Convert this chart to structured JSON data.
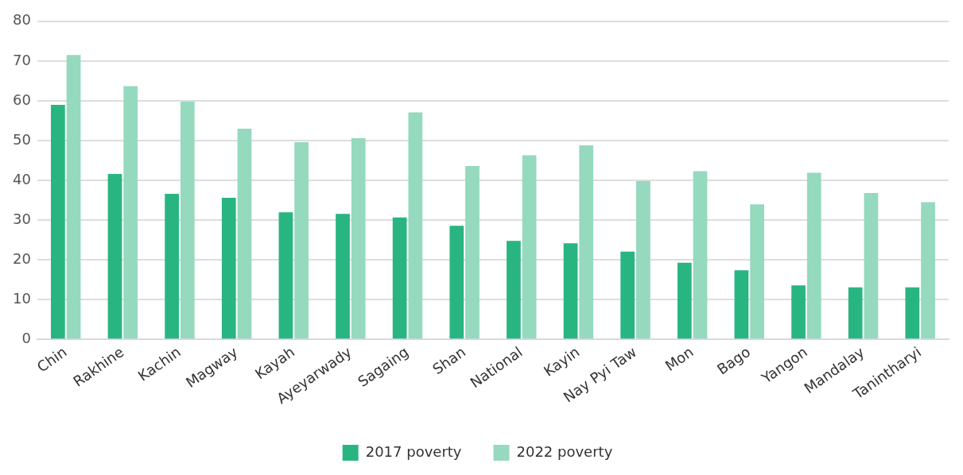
{
  "chart_data": {
    "type": "bar",
    "categories": [
      "Chin",
      "Rakhine",
      "Kachin",
      "Magway",
      "Kayah",
      "Ayeyarwady",
      "Sagaing",
      "Shan",
      "National",
      "Kayin",
      "Nay Pyi Taw",
      "Mon",
      "Bago",
      "Yangon",
      "Mandalay",
      "Tanintharyi"
    ],
    "series": [
      {
        "name": "2017 poverty",
        "color": "#29b582",
        "values": [
          59,
          41.6,
          36.6,
          35.6,
          32,
          31.6,
          30.7,
          28.6,
          24.8,
          24.2,
          22.1,
          19.3,
          17.4,
          13.6,
          13.1,
          13.1
        ]
      },
      {
        "name": "2022 poverty",
        "color": "#95d9be",
        "values": [
          71.5,
          63.7,
          59.8,
          53,
          49.6,
          50.6,
          57.1,
          43.6,
          46.3,
          48.8,
          39.8,
          42.3,
          34,
          41.9,
          36.8,
          34.5
        ]
      }
    ],
    "ylim": [
      0,
      80
    ],
    "yticks": [
      0,
      10,
      20,
      30,
      40,
      50,
      60,
      70,
      80
    ],
    "grid": "y",
    "legend": "bottom"
  }
}
